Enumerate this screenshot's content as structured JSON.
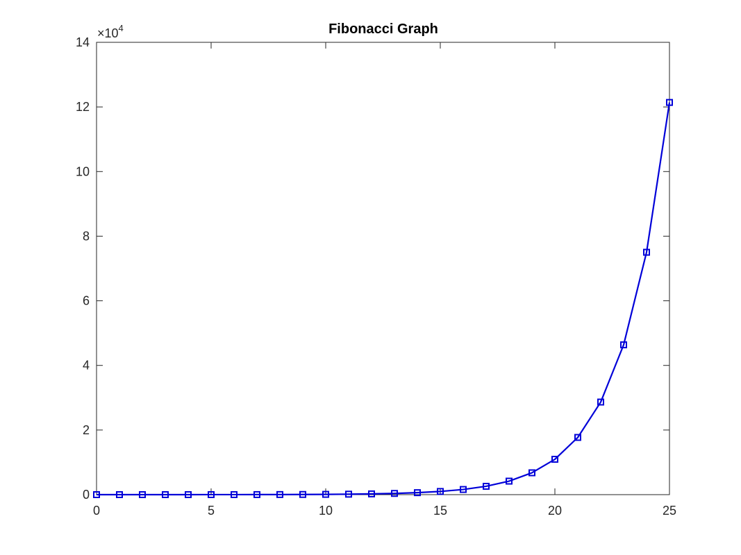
{
  "chart_data": {
    "type": "line",
    "title": "Fibonacci Graph",
    "xlabel": "",
    "ylabel": "",
    "xlim": [
      0,
      25
    ],
    "ylim": [
      0,
      140000
    ],
    "y_multiplier": {
      "base": "10",
      "exponent": "4",
      "prefix": "×"
    },
    "xticks": [
      0,
      5,
      10,
      15,
      20,
      25
    ],
    "yticks": [
      0,
      20000,
      40000,
      60000,
      80000,
      100000,
      120000,
      140000
    ],
    "xtick_labels": [
      "0",
      "5",
      "10",
      "15",
      "20",
      "25"
    ],
    "ytick_labels": [
      "0",
      "2",
      "4",
      "6",
      "8",
      "10",
      "12",
      "14"
    ],
    "grid": false,
    "box": true,
    "series": [
      {
        "marker": "square",
        "color": "#0000d8",
        "x": [
          0,
          1,
          2,
          3,
          4,
          5,
          6,
          7,
          8,
          9,
          10,
          11,
          12,
          13,
          14,
          15,
          16,
          17,
          18,
          19,
          20,
          21,
          22,
          23,
          24,
          25
        ],
        "y": [
          1,
          1,
          2,
          3,
          5,
          8,
          13,
          21,
          34,
          55,
          89,
          144,
          233,
          377,
          610,
          987,
          1597,
          2584,
          4181,
          6765,
          10946,
          17711,
          28657,
          46368,
          75025,
          121393
        ]
      }
    ]
  }
}
